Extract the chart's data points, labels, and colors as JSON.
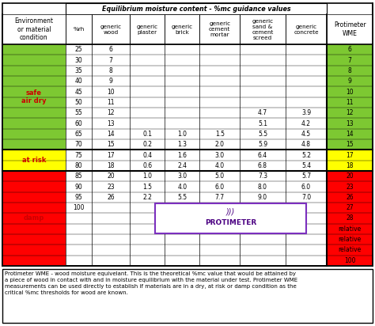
{
  "title": "Equilibrium moisture content - %mc guidance values",
  "col_headers": [
    "Environment\nor material\ncondition",
    "%rh",
    "generic\nwood",
    "generic\nplaster",
    "generic\nbrick",
    "generic\ncement\nmortar",
    "generic\nsand &\ncement\nscreed",
    "generic\nconcrete",
    "Protimeter\nWME"
  ],
  "rows": [
    {
      "rh": "25",
      "wood": "6",
      "plaster": "",
      "brick": "",
      "mortar": "",
      "screed": "",
      "concrete": "",
      "wme": "6",
      "zone": "safe"
    },
    {
      "rh": "30",
      "wood": "7",
      "plaster": "",
      "brick": "",
      "mortar": "",
      "screed": "",
      "concrete": "",
      "wme": "7",
      "zone": "safe"
    },
    {
      "rh": "35",
      "wood": "8",
      "plaster": "",
      "brick": "",
      "mortar": "",
      "screed": "",
      "concrete": "",
      "wme": "8",
      "zone": "safe"
    },
    {
      "rh": "40",
      "wood": "9",
      "plaster": "",
      "brick": "",
      "mortar": "",
      "screed": "",
      "concrete": "",
      "wme": "9",
      "zone": "safe"
    },
    {
      "rh": "45",
      "wood": "10",
      "plaster": "",
      "brick": "",
      "mortar": "",
      "screed": "",
      "concrete": "",
      "wme": "10",
      "zone": "safe"
    },
    {
      "rh": "50",
      "wood": "11",
      "plaster": "",
      "brick": "",
      "mortar": "",
      "screed": "",
      "concrete": "",
      "wme": "11",
      "zone": "safe"
    },
    {
      "rh": "55",
      "wood": "12",
      "plaster": "",
      "brick": "",
      "mortar": "",
      "screed": "4.7",
      "concrete": "3.9",
      "wme": "12",
      "zone": "safe"
    },
    {
      "rh": "60",
      "wood": "13",
      "plaster": "",
      "brick": "",
      "mortar": "",
      "screed": "5.1",
      "concrete": "4.2",
      "wme": "13",
      "zone": "safe"
    },
    {
      "rh": "65",
      "wood": "14",
      "plaster": "0.1",
      "brick": "1.0",
      "mortar": "1.5",
      "screed": "5.5",
      "concrete": "4.5",
      "wme": "14",
      "zone": "safe"
    },
    {
      "rh": "70",
      "wood": "15",
      "plaster": "0.2",
      "brick": "1.3",
      "mortar": "2.0",
      "screed": "5.9",
      "concrete": "4.8",
      "wme": "15",
      "zone": "safe"
    },
    {
      "rh": "75",
      "wood": "17",
      "plaster": "0.4",
      "brick": "1.6",
      "mortar": "3.0",
      "screed": "6.4",
      "concrete": "5.2",
      "wme": "17",
      "zone": "atrisk"
    },
    {
      "rh": "80",
      "wood": "18",
      "plaster": "0.6",
      "brick": "2.4",
      "mortar": "4.0",
      "screed": "6.8",
      "concrete": "5.4",
      "wme": "18",
      "zone": "atrisk"
    },
    {
      "rh": "85",
      "wood": "20",
      "plaster": "1.0",
      "brick": "3.0",
      "mortar": "5.0",
      "screed": "7.3",
      "concrete": "5.7",
      "wme": "20",
      "zone": "damp"
    },
    {
      "rh": "90",
      "wood": "23",
      "plaster": "1.5",
      "brick": "4.0",
      "mortar": "6.0",
      "screed": "8.0",
      "concrete": "6.0",
      "wme": "23",
      "zone": "damp"
    },
    {
      "rh": "95",
      "wood": "26",
      "plaster": "2.2",
      "brick": "5.5",
      "mortar": "7.7",
      "screed": "9.0",
      "concrete": "7.0",
      "wme": "26",
      "zone": "damp"
    },
    {
      "rh": "100",
      "wood": "",
      "plaster": "",
      "brick": "",
      "mortar": "",
      "screed": "",
      "concrete": "",
      "wme": "27",
      "zone": "damp"
    },
    {
      "rh": "",
      "wood": "",
      "plaster": "",
      "brick": "",
      "mortar": "",
      "screed": "",
      "concrete": "",
      "wme": "28",
      "zone": "damp"
    },
    {
      "rh": "",
      "wood": "",
      "plaster": "",
      "brick": "",
      "mortar": "",
      "screed": "",
      "concrete": "",
      "wme": "relative",
      "zone": "damp"
    },
    {
      "rh": "",
      "wood": "",
      "plaster": "",
      "brick": "",
      "mortar": "",
      "screed": "",
      "concrete": "",
      "wme": "relative",
      "zone": "damp"
    },
    {
      "rh": "",
      "wood": "",
      "plaster": "",
      "brick": "",
      "mortar": "",
      "screed": "",
      "concrete": "",
      "wme": "relative",
      "zone": "damp"
    },
    {
      "rh": "",
      "wood": "",
      "plaster": "",
      "brick": "",
      "mortar": "",
      "screed": "",
      "concrete": "",
      "wme": "100",
      "zone": "damp"
    }
  ],
  "zone_labels": {
    "safe": "safe\nair dry",
    "atrisk": "at risk",
    "damp": "damp"
  },
  "zone_colors": {
    "safe": "#7DC832",
    "atrisk": "#FFFF00",
    "damp": "#FF0000"
  },
  "footer_text": "Protimeter WME - wood moisture equivelant. This is the theoretical %mc value that would be attained by\na piece of wood in contact with and in moisture equilibrium with the material under test. Protimeter WME\nmeasurements can be used directly to establish if materials are in a dry, at risk or damp condition as the\ncritical %mc thresholds for wood are known.",
  "bg_color": "#FFFFFF"
}
